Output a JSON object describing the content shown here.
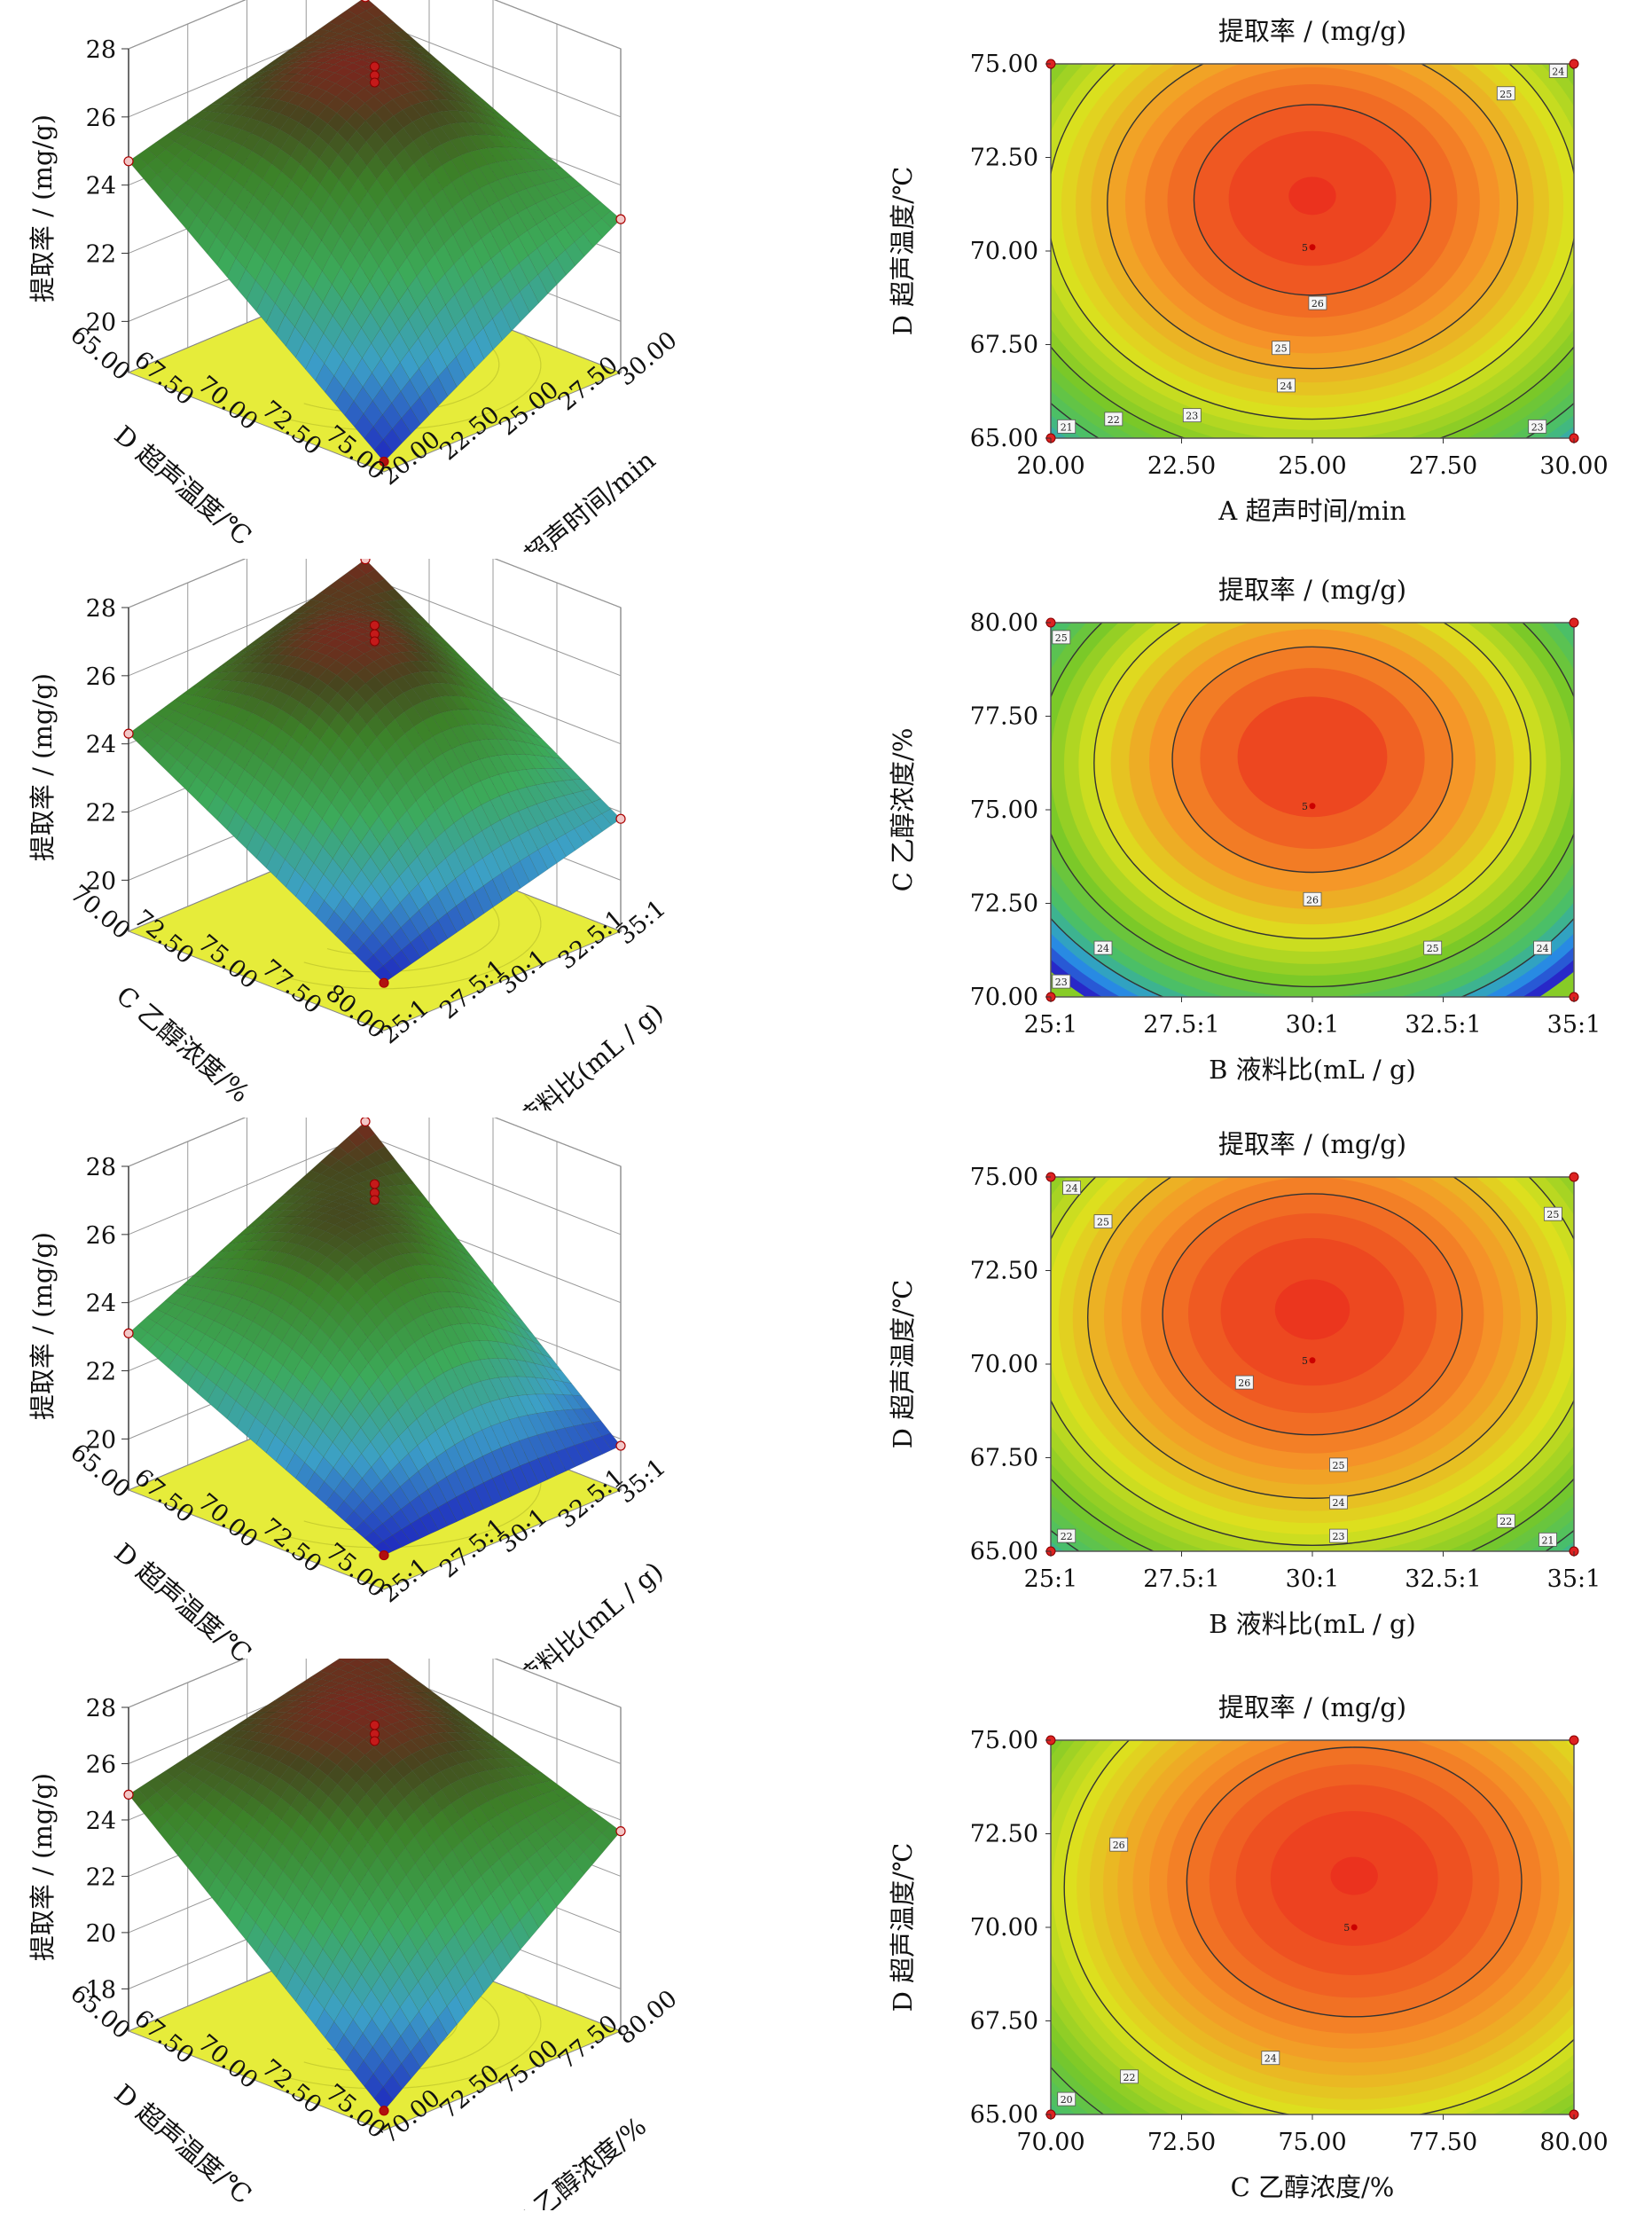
{
  "chart_data": [
    {
      "type": "surface3d",
      "zlabel": "提取率 / (mg/g)",
      "zticks": [
        "20",
        "22",
        "24",
        "26",
        "28"
      ],
      "x_label": "A 超声时间/min",
      "x_ticks": [
        "20.00",
        "22.50",
        "25.00",
        "27.50",
        "30.00"
      ],
      "y_label": "D 超声温度/℃",
      "y_ticks": [
        "65.00",
        "67.50",
        "70.00",
        "72.50",
        "75.00"
      ],
      "zlim": [
        18.5,
        28
      ],
      "corner_values": {
        "front": 18.8,
        "left": 24.7,
        "right": 23.0,
        "back": 26.6
      }
    },
    {
      "type": "contour",
      "title": "提取率 / (mg/g)",
      "xlabel": "A 超声时间/min",
      "ylabel": "D 超声温度/℃",
      "xlim": [
        20,
        30
      ],
      "ylim": [
        65,
        75
      ],
      "xticks": [
        "20.00",
        "22.50",
        "25.00",
        "27.50",
        "30.00"
      ],
      "yticks": [
        "65.00",
        "67.50",
        "70.00",
        "72.50",
        "75.00"
      ],
      "center": [
        25,
        71.5
      ],
      "peak": 26.5,
      "contour_levels": [
        21,
        22,
        23,
        24,
        25,
        26
      ],
      "contour_labels": [
        {
          "text": "21",
          "x": 20.3,
          "y": 65.3
        },
        {
          "text": "22",
          "x": 21.2,
          "y": 65.5
        },
        {
          "text": "23",
          "x": 22.7,
          "y": 65.6
        },
        {
          "text": "24",
          "x": 24.5,
          "y": 66.4
        },
        {
          "text": "25",
          "x": 24.4,
          "y": 67.4
        },
        {
          "text": "26",
          "x": 25.1,
          "y": 68.6
        },
        {
          "text": "23",
          "x": 29.3,
          "y": 65.3
        },
        {
          "text": "25",
          "x": 28.7,
          "y": 74.2
        },
        {
          "text": "24",
          "x": 29.7,
          "y": 74.8
        }
      ],
      "center_mark": "5"
    },
    {
      "type": "surface3d",
      "zlabel": "提取率 / (mg/g)",
      "zticks": [
        "20",
        "22",
        "24",
        "26",
        "28"
      ],
      "x_label": "B 液料比(mL / g)",
      "x_ticks": [
        "25:1",
        "27.5:1",
        "30:1",
        "32.5:1",
        "35:1"
      ],
      "y_label": "C 乙醇浓度/%",
      "y_ticks": [
        "70.00",
        "72.50",
        "75.00",
        "77.50",
        "80.00"
      ],
      "zlim": [
        18.5,
        28
      ],
      "corner_values": {
        "front": 19.9,
        "left": 24.3,
        "right": 21.8,
        "back": 26.5
      }
    },
    {
      "type": "contour",
      "title": "提取率 / (mg/g)",
      "xlabel": "B 液料比(mL / g)",
      "ylabel": "C 乙醇浓度/%",
      "xlim": [
        25,
        35
      ],
      "ylim": [
        70,
        80
      ],
      "xticks": [
        "25:1",
        "27.5:1",
        "30:1",
        "32.5:1",
        "35:1"
      ],
      "yticks": [
        "70.00",
        "72.50",
        "75.00",
        "77.50",
        "80.00"
      ],
      "center": [
        30,
        76.5
      ],
      "peak": 26.7,
      "contour_levels": [
        23,
        24,
        25,
        26
      ],
      "contour_labels": [
        {
          "text": "25",
          "x": 25.2,
          "y": 79.6
        },
        {
          "text": "24",
          "x": 26.0,
          "y": 71.3
        },
        {
          "text": "23",
          "x": 25.2,
          "y": 70.4
        },
        {
          "text": "26",
          "x": 30.0,
          "y": 72.6
        },
        {
          "text": "25",
          "x": 32.3,
          "y": 71.3
        },
        {
          "text": "24",
          "x": 34.4,
          "y": 71.3
        }
      ],
      "center_mark": "5"
    },
    {
      "type": "surface3d",
      "zlabel": "提取率 / (mg/g)",
      "zticks": [
        "20",
        "22",
        "24",
        "26",
        "28"
      ],
      "x_label": "B 液料比(mL / g)",
      "x_ticks": [
        "25:1",
        "27.5:1",
        "30:1",
        "32.5:1",
        "35:1"
      ],
      "y_label": "D 超声温度/℃",
      "y_ticks": [
        "65.00",
        "67.50",
        "70.00",
        "72.50",
        "75.00"
      ],
      "zlim": [
        18.5,
        28
      ],
      "corner_values": {
        "front": 19.5,
        "left": 23.1,
        "right": 19.8,
        "back": 26.4
      }
    },
    {
      "type": "contour",
      "title": "提取率 / (mg/g)",
      "xlabel": "B 液料比(mL / g)",
      "ylabel": "D 超声温度/℃",
      "xlim": [
        25,
        35
      ],
      "ylim": [
        65,
        75
      ],
      "xticks": [
        "25:1",
        "27.5:1",
        "30:1",
        "32.5:1",
        "35:1"
      ],
      "yticks": [
        "65.00",
        "67.50",
        "70.00",
        "72.50",
        "75.00"
      ],
      "center": [
        30,
        71.5
      ],
      "peak": 26.8,
      "contour_levels": [
        21,
        22,
        23,
        24,
        25,
        26
      ],
      "contour_labels": [
        {
          "text": "24",
          "x": 25.4,
          "y": 74.7
        },
        {
          "text": "25",
          "x": 26.0,
          "y": 73.8
        },
        {
          "text": "25",
          "x": 34.6,
          "y": 74.0
        },
        {
          "text": "26",
          "x": 28.7,
          "y": 69.5
        },
        {
          "text": "25",
          "x": 30.5,
          "y": 67.3
        },
        {
          "text": "24",
          "x": 30.5,
          "y": 66.3
        },
        {
          "text": "23",
          "x": 30.5,
          "y": 65.4
        },
        {
          "text": "22",
          "x": 25.3,
          "y": 65.4
        },
        {
          "text": "22",
          "x": 33.7,
          "y": 65.8
        },
        {
          "text": "21",
          "x": 34.5,
          "y": 65.3
        }
      ],
      "center_mark": "5"
    },
    {
      "type": "surface3d",
      "zlabel": "提取率 / (mg/g)",
      "zticks": [
        "18",
        "20",
        "22",
        "24",
        "26",
        "28"
      ],
      "x_label": "C 乙醇浓度/%",
      "x_ticks": [
        "70.00",
        "72.50",
        "75.00",
        "77.50",
        "80.00"
      ],
      "y_label": "D 超声温度/℃",
      "y_ticks": [
        "65.00",
        "67.50",
        "70.00",
        "72.50",
        "75.00"
      ],
      "zlim": [
        16.5,
        28
      ],
      "corner_values": {
        "front": 17.2,
        "left": 24.9,
        "right": 23.6,
        "back": 26.8
      }
    },
    {
      "type": "contour",
      "title": "提取率 / (mg/g)",
      "xlabel": "C 乙醇浓度/%",
      "ylabel": "D 超声温度/℃",
      "xlim": [
        70,
        80
      ],
      "ylim": [
        65,
        75
      ],
      "xticks": [
        "70.00",
        "72.50",
        "75.00",
        "77.50",
        "80.00"
      ],
      "yticks": [
        "65.00",
        "67.50",
        "70.00",
        "72.50",
        "75.00"
      ],
      "center": [
        75.8,
        71.4
      ],
      "peak": 27.0,
      "contour_levels": [
        20,
        22,
        24,
        26
      ],
      "contour_labels": [
        {
          "text": "26",
          "x": 71.3,
          "y": 72.2
        },
        {
          "text": "24",
          "x": 74.2,
          "y": 66.5
        },
        {
          "text": "22",
          "x": 71.5,
          "y": 66.0
        },
        {
          "text": "20",
          "x": 70.3,
          "y": 65.4
        }
      ],
      "center_mark": "5"
    }
  ]
}
